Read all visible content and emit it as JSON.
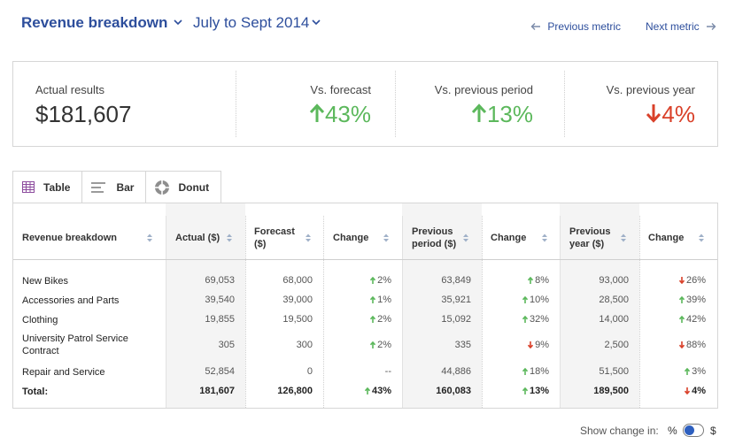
{
  "header": {
    "title": "Revenue breakdown",
    "period": "July to Sept 2014",
    "prev_metric": "Previous metric",
    "next_metric": "Next metric"
  },
  "kpis": {
    "actual_label": "Actual results",
    "actual_value": "$181,607",
    "forecast_label": "Vs. forecast",
    "forecast_change": "43%",
    "forecast_direction": "up",
    "prev_period_label": "Vs. previous period",
    "prev_period_change": "13%",
    "prev_period_direction": "up",
    "prev_year_label": "Vs. previous year",
    "prev_year_change": "4%",
    "prev_year_direction": "down"
  },
  "tabs": [
    {
      "label": "Table",
      "icon": "table-icon",
      "active": true
    },
    {
      "label": "Bar",
      "icon": "bar-icon",
      "active": false
    },
    {
      "label": "Donut",
      "icon": "donut-icon",
      "active": false
    }
  ],
  "table": {
    "headers": {
      "name": "Revenue breakdown",
      "actual": "Actual ($)",
      "forecast": "Forecast ($)",
      "change1": "Change",
      "prev_period": "Previous period ($)",
      "change2": "Change",
      "prev_year": "Previous year ($)",
      "change3": "Change"
    },
    "rows": [
      {
        "name": "New Bikes",
        "actual": "69,053",
        "forecast": "68,000",
        "c1": "2%",
        "c1_dir": "up",
        "prev_period": "63,849",
        "c2": "8%",
        "c2_dir": "up",
        "prev_year": "93,000",
        "c3": "26%",
        "c3_dir": "down"
      },
      {
        "name": "Accessories and Parts",
        "actual": "39,540",
        "forecast": "39,000",
        "c1": "1%",
        "c1_dir": "up",
        "prev_period": "35,921",
        "c2": "10%",
        "c2_dir": "up",
        "prev_year": "28,500",
        "c3": "39%",
        "c3_dir": "up"
      },
      {
        "name": "Clothing",
        "actual": "19,855",
        "forecast": "19,500",
        "c1": "2%",
        "c1_dir": "up",
        "prev_period": "15,092",
        "c2": "32%",
        "c2_dir": "up",
        "prev_year": "14,000",
        "c3": "42%",
        "c3_dir": "up"
      },
      {
        "name": "University Patrol Service Contract",
        "actual": "305",
        "forecast": "300",
        "c1": "2%",
        "c1_dir": "up",
        "prev_period": "335",
        "c2": "9%",
        "c2_dir": "down",
        "prev_year": "2,500",
        "c3": "88%",
        "c3_dir": "down"
      },
      {
        "name": "Repair and Service",
        "actual": "52,854",
        "forecast": "0",
        "c1": "--",
        "c1_dir": "none",
        "prev_period": "44,886",
        "c2": "18%",
        "c2_dir": "up",
        "prev_year": "51,500",
        "c3": "3%",
        "c3_dir": "up"
      }
    ],
    "total": {
      "name": "Total:",
      "actual": "181,607",
      "forecast": "126,800",
      "c1": "43%",
      "c1_dir": "up",
      "prev_period": "160,083",
      "c2": "13%",
      "c2_dir": "up",
      "prev_year": "189,500",
      "c3": "4%",
      "c3_dir": "down"
    }
  },
  "footer": {
    "show_change_label": "Show change in:",
    "toggle_left": "%",
    "toggle_right": "$"
  },
  "colors": {
    "brand_blue": "#2d4e9c",
    "up_green": "#5cb85c",
    "down_red": "#d9412a"
  }
}
